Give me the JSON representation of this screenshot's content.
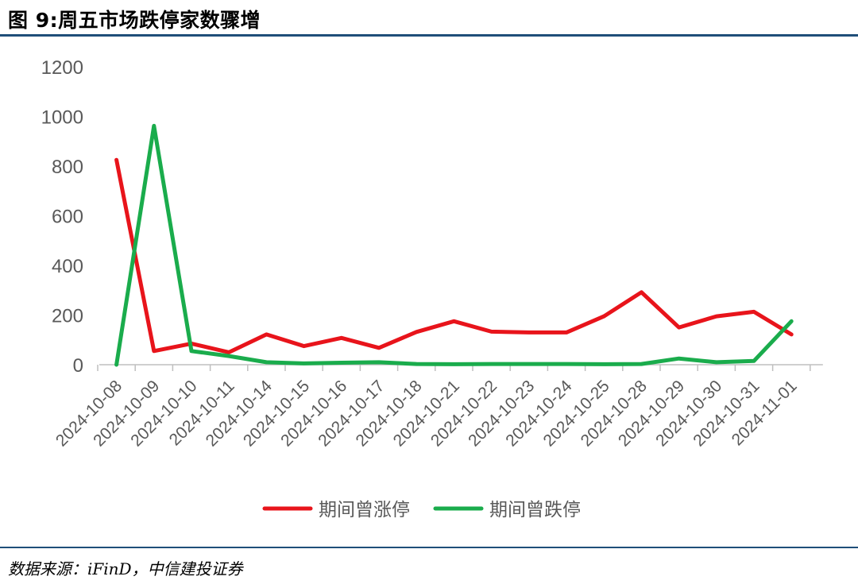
{
  "header": {
    "title": "图 9:周五市场跌停家数骤增"
  },
  "footer": {
    "source": "数据来源：iFinD，中信建投证券"
  },
  "chart_data": {
    "type": "line",
    "title": "图 9:周五市场跌停家数骤增",
    "xlabel": "",
    "ylabel": "",
    "ylim": [
      0,
      1200
    ],
    "yticks": [
      0,
      200,
      400,
      600,
      800,
      1000,
      1200
    ],
    "legend_position": "bottom",
    "grid": false,
    "categories": [
      "2024-10-08",
      "2024-10-09",
      "2024-10-10",
      "2024-10-11",
      "2024-10-14",
      "2024-10-15",
      "2024-10-16",
      "2024-10-17",
      "2024-10-18",
      "2024-10-21",
      "2024-10-22",
      "2024-10-23",
      "2024-10-24",
      "2024-10-25",
      "2024-10-28",
      "2024-10-29",
      "2024-10-30",
      "2024-10-31",
      "2024-11-01"
    ],
    "series": [
      {
        "name": "期间曾涨停",
        "color": "#e8141b",
        "values": [
          825,
          55,
          85,
          50,
          122,
          75,
          108,
          68,
          132,
          175,
          133,
          130,
          130,
          195,
          292,
          150,
          195,
          213,
          122
        ]
      },
      {
        "name": "期间曾跌停",
        "color": "#1aac4c",
        "values": [
          0,
          962,
          55,
          35,
          10,
          5,
          8,
          10,
          3,
          2,
          3,
          3,
          3,
          2,
          3,
          25,
          10,
          15,
          175
        ]
      }
    ]
  }
}
